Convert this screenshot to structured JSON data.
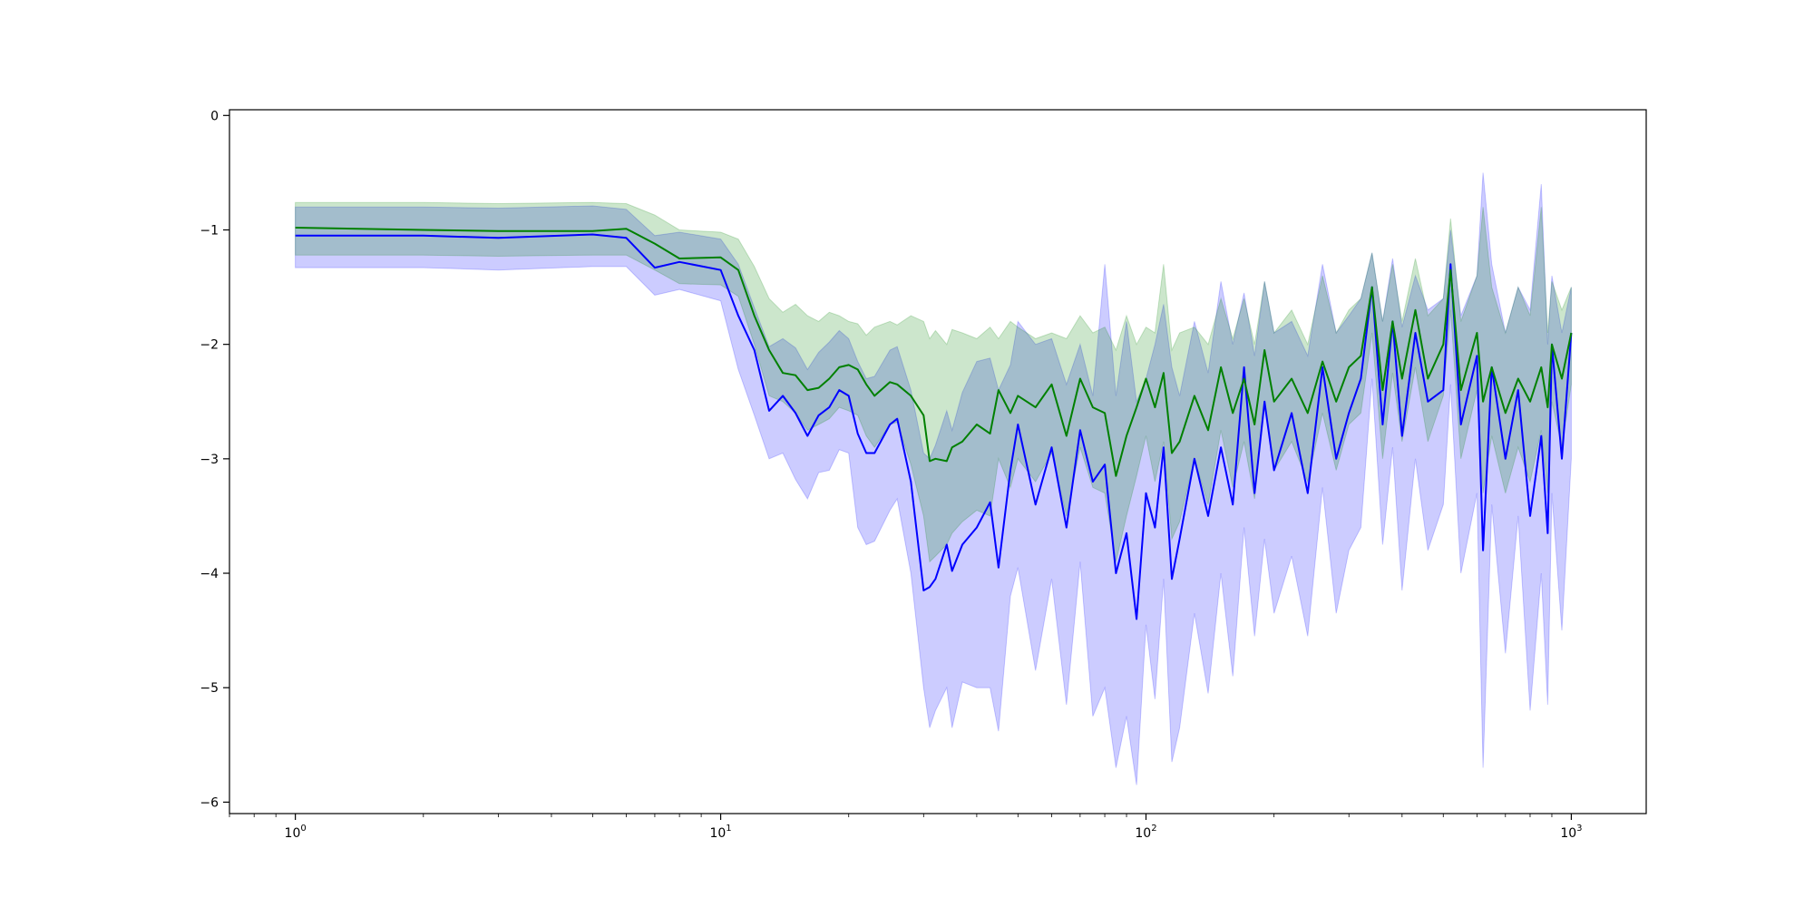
{
  "chart_data": {
    "type": "line",
    "title": "",
    "xlabel": "",
    "ylabel": "",
    "xscale": "log",
    "xlim": [
      0.7,
      1500
    ],
    "ylim": [
      -6.1,
      0.05
    ],
    "grid": false,
    "legend": "none",
    "x_tick_labels": [
      {
        "base": "10",
        "exp": "0"
      },
      {
        "base": "10",
        "exp": "1"
      },
      {
        "base": "10",
        "exp": "2"
      },
      {
        "base": "10",
        "exp": "3"
      }
    ],
    "y_tick_labels": [
      "0",
      "−1",
      "−2",
      "−3",
      "−4",
      "−5",
      "−6"
    ],
    "series": [
      {
        "color": "#0000ff",
        "band_color": "#0000ff",
        "band_opacity": 0.2,
        "x": [
          1,
          2,
          3,
          5,
          6,
          7,
          8,
          10,
          11,
          12,
          13,
          14,
          15,
          16,
          17,
          18,
          19,
          20,
          21,
          22,
          23,
          25,
          26,
          28,
          30,
          31,
          32,
          34,
          35,
          37,
          40,
          43,
          45,
          48,
          50,
          55,
          60,
          65,
          70,
          75,
          80,
          85,
          90,
          95,
          100,
          105,
          110,
          115,
          120,
          130,
          140,
          150,
          160,
          170,
          180,
          190,
          200,
          220,
          240,
          260,
          280,
          300,
          320,
          340,
          360,
          380,
          400,
          430,
          460,
          500,
          520,
          550,
          600,
          620,
          650,
          700,
          750,
          800,
          850,
          880,
          900,
          950,
          1000
        ],
        "y": [
          -1.05,
          -1.05,
          -1.07,
          -1.04,
          -1.07,
          -1.33,
          -1.28,
          -1.35,
          -1.75,
          -2.05,
          -2.58,
          -2.45,
          -2.6,
          -2.8,
          -2.62,
          -2.55,
          -2.4,
          -2.45,
          -2.78,
          -2.95,
          -2.95,
          -2.7,
          -2.65,
          -3.2,
          -4.15,
          -4.12,
          -4.05,
          -3.75,
          -3.98,
          -3.75,
          -3.6,
          -3.38,
          -3.95,
          -3.1,
          -2.7,
          -3.4,
          -2.9,
          -3.6,
          -2.75,
          -3.2,
          -3.05,
          -4.0,
          -3.65,
          -4.4,
          -3.3,
          -3.6,
          -2.9,
          -4.05,
          -3.7,
          -3.0,
          -3.5,
          -2.9,
          -3.4,
          -2.2,
          -3.3,
          -2.5,
          -3.1,
          -2.6,
          -3.3,
          -2.2,
          -3.0,
          -2.6,
          -2.3,
          -1.5,
          -2.7,
          -1.8,
          -2.8,
          -1.9,
          -2.5,
          -2.4,
          -1.3,
          -2.7,
          -2.1,
          -3.8,
          -2.2,
          -3.0,
          -2.4,
          -3.5,
          -2.8,
          -3.65,
          -2.0,
          -3.0,
          -1.9
        ],
        "upper": [
          -0.8,
          -0.8,
          -0.81,
          -0.79,
          -0.82,
          -1.05,
          -1.02,
          -1.08,
          -1.3,
          -1.68,
          -2.02,
          -1.95,
          -2.03,
          -2.22,
          -2.07,
          -1.98,
          -1.88,
          -1.95,
          -2.15,
          -2.3,
          -2.28,
          -2.05,
          -2.02,
          -2.4,
          -2.95,
          -3.0,
          -2.88,
          -2.58,
          -2.75,
          -2.42,
          -2.15,
          -2.12,
          -2.4,
          -2.18,
          -1.8,
          -2.0,
          -1.95,
          -2.35,
          -2.0,
          -2.45,
          -1.3,
          -2.45,
          -1.8,
          -2.5,
          -2.3,
          -2.0,
          -1.65,
          -2.2,
          -2.45,
          -1.8,
          -2.25,
          -1.45,
          -2.0,
          -1.55,
          -2.1,
          -1.45,
          -1.9,
          -1.8,
          -2.1,
          -1.3,
          -1.9,
          -1.75,
          -1.6,
          -1.2,
          -1.8,
          -1.25,
          -1.85,
          -1.4,
          -1.7,
          -1.6,
          -1.0,
          -1.75,
          -1.4,
          -0.5,
          -1.3,
          -1.9,
          -1.5,
          -1.7,
          -0.6,
          -2.0,
          -1.4,
          -1.9,
          -1.5
        ],
        "lower": [
          -1.33,
          -1.33,
          -1.35,
          -1.32,
          -1.32,
          -1.57,
          -1.52,
          -1.62,
          -2.22,
          -2.62,
          -3.0,
          -2.95,
          -3.18,
          -3.35,
          -3.12,
          -3.1,
          -2.92,
          -2.95,
          -3.6,
          -3.75,
          -3.72,
          -3.45,
          -3.35,
          -4.0,
          -5.0,
          -5.35,
          -5.2,
          -5.0,
          -5.35,
          -4.95,
          -5.0,
          -5.0,
          -5.38,
          -4.2,
          -3.95,
          -4.85,
          -4.05,
          -5.15,
          -3.9,
          -5.25,
          -5.0,
          -5.7,
          -5.25,
          -5.85,
          -4.45,
          -5.1,
          -4.05,
          -5.65,
          -5.35,
          -4.35,
          -5.05,
          -4.0,
          -4.9,
          -3.6,
          -4.55,
          -3.7,
          -4.35,
          -3.85,
          -4.55,
          -3.25,
          -4.35,
          -3.8,
          -3.6,
          -2.3,
          -3.75,
          -2.9,
          -4.15,
          -3.0,
          -3.8,
          -3.4,
          -2.35,
          -4.0,
          -3.3,
          -5.7,
          -3.4,
          -4.7,
          -3.5,
          -5.2,
          -4.0,
          -5.15,
          -3.3,
          -4.5,
          -3.0
        ]
      },
      {
        "color": "#008000",
        "band_color": "#008000",
        "band_opacity": 0.2,
        "x": [
          1,
          2,
          3,
          5,
          6,
          7,
          8,
          10,
          11,
          12,
          13,
          14,
          15,
          16,
          17,
          18,
          19,
          20,
          21,
          22,
          23,
          25,
          26,
          28,
          30,
          31,
          32,
          34,
          35,
          37,
          40,
          43,
          45,
          48,
          50,
          55,
          60,
          65,
          70,
          75,
          80,
          85,
          90,
          95,
          100,
          105,
          110,
          115,
          120,
          130,
          140,
          150,
          160,
          170,
          180,
          190,
          200,
          220,
          240,
          260,
          280,
          300,
          320,
          340,
          360,
          380,
          400,
          430,
          460,
          500,
          520,
          550,
          600,
          620,
          650,
          700,
          750,
          800,
          850,
          880,
          900,
          950,
          1000
        ],
        "y": [
          -0.98,
          -1.0,
          -1.01,
          -1.01,
          -0.99,
          -1.12,
          -1.25,
          -1.24,
          -1.35,
          -1.75,
          -2.05,
          -2.25,
          -2.27,
          -2.4,
          -2.38,
          -2.3,
          -2.2,
          -2.18,
          -2.22,
          -2.35,
          -2.45,
          -2.33,
          -2.35,
          -2.45,
          -2.62,
          -3.02,
          -3.0,
          -3.02,
          -2.9,
          -2.85,
          -2.7,
          -2.78,
          -2.4,
          -2.6,
          -2.45,
          -2.55,
          -2.35,
          -2.8,
          -2.3,
          -2.55,
          -2.6,
          -3.15,
          -2.8,
          -2.55,
          -2.3,
          -2.55,
          -2.25,
          -2.95,
          -2.85,
          -2.45,
          -2.75,
          -2.2,
          -2.6,
          -2.3,
          -2.7,
          -2.05,
          -2.5,
          -2.3,
          -2.6,
          -2.15,
          -2.5,
          -2.2,
          -2.1,
          -1.5,
          -2.4,
          -1.8,
          -2.3,
          -1.7,
          -2.3,
          -2.0,
          -1.35,
          -2.4,
          -1.9,
          -2.5,
          -2.2,
          -2.6,
          -2.3,
          -2.5,
          -2.2,
          -2.55,
          -2.0,
          -2.3,
          -1.9
        ],
        "upper": [
          -0.76,
          -0.76,
          -0.77,
          -0.76,
          -0.77,
          -0.87,
          -1.0,
          -1.02,
          -1.08,
          -1.32,
          -1.6,
          -1.72,
          -1.65,
          -1.75,
          -1.8,
          -1.72,
          -1.75,
          -1.8,
          -1.82,
          -1.92,
          -1.85,
          -1.8,
          -1.83,
          -1.75,
          -1.8,
          -1.95,
          -1.88,
          -2.0,
          -1.87,
          -1.9,
          -1.95,
          -1.85,
          -1.95,
          -1.8,
          -1.85,
          -1.95,
          -1.9,
          -1.95,
          -1.75,
          -1.9,
          -1.85,
          -2.05,
          -1.75,
          -2.0,
          -1.85,
          -1.9,
          -1.3,
          -2.05,
          -1.9,
          -1.85,
          -2.0,
          -1.6,
          -1.95,
          -1.6,
          -2.0,
          -1.45,
          -1.9,
          -1.7,
          -2.0,
          -1.4,
          -1.9,
          -1.7,
          -1.6,
          -1.2,
          -1.8,
          -1.3,
          -1.8,
          -1.25,
          -1.75,
          -1.6,
          -0.9,
          -1.8,
          -1.4,
          -0.8,
          -1.5,
          -1.9,
          -1.5,
          -1.75,
          -0.8,
          -1.9,
          -1.45,
          -1.7,
          -1.5
        ],
        "lower": [
          -1.22,
          -1.22,
          -1.23,
          -1.22,
          -1.22,
          -1.35,
          -1.47,
          -1.48,
          -1.58,
          -2.0,
          -2.45,
          -2.5,
          -2.6,
          -2.75,
          -2.7,
          -2.65,
          -2.55,
          -2.58,
          -2.62,
          -2.8,
          -2.9,
          -2.7,
          -2.68,
          -3.05,
          -3.5,
          -3.9,
          -3.85,
          -3.75,
          -3.65,
          -3.55,
          -3.45,
          -3.5,
          -3.0,
          -3.25,
          -3.0,
          -3.2,
          -2.95,
          -3.5,
          -2.9,
          -3.25,
          -3.3,
          -3.9,
          -3.5,
          -3.15,
          -2.8,
          -3.2,
          -2.85,
          -3.7,
          -3.55,
          -3.0,
          -3.4,
          -2.75,
          -3.25,
          -2.85,
          -3.35,
          -2.55,
          -3.1,
          -2.85,
          -3.2,
          -2.6,
          -3.1,
          -2.7,
          -2.6,
          -1.9,
          -3.0,
          -2.25,
          -2.85,
          -2.2,
          -2.85,
          -2.45,
          -1.7,
          -3.0,
          -2.4,
          -3.3,
          -2.8,
          -3.3,
          -2.9,
          -3.2,
          -2.75,
          -3.3,
          -2.5,
          -2.9,
          -2.35
        ]
      }
    ]
  }
}
